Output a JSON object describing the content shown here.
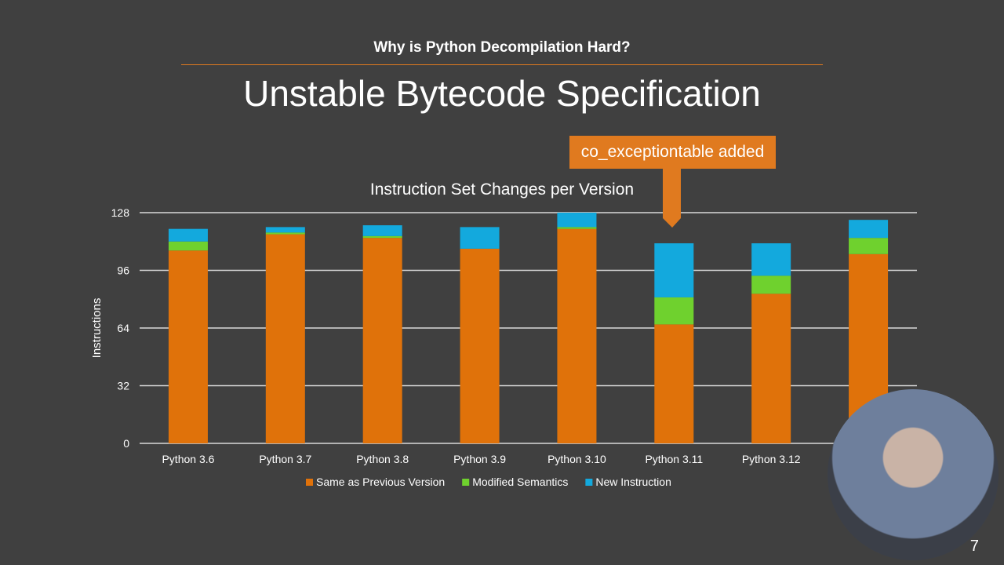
{
  "slide": {
    "kicker": "Why is Python Decompilation Hard?",
    "title": "Unstable Bytecode Specification",
    "callout": "co_exceptiontable added",
    "page_number": "7"
  },
  "chart_data": {
    "type": "bar",
    "stacked": true,
    "title": "Instruction Set Changes per Version",
    "xlabel": "",
    "ylabel": "Instructions",
    "ylim": [
      0,
      128
    ],
    "yticks": [
      0,
      32,
      64,
      96,
      128
    ],
    "grid": true,
    "legend_position": "bottom",
    "categories": [
      "Python 3.6",
      "Python 3.7",
      "Python 3.8",
      "Python 3.9",
      "Python 3.10",
      "Python 3.11",
      "Python 3.12",
      ""
    ],
    "series": [
      {
        "name": "Same as Previous Version",
        "color": "#e0720a",
        "values": [
          107,
          116,
          114,
          108,
          119,
          66,
          83,
          105
        ]
      },
      {
        "name": "Modified Semantics",
        "color": "#6fd12e",
        "values": [
          5,
          1,
          1,
          0,
          1,
          15,
          10,
          9
        ]
      },
      {
        "name": "New Instruction",
        "color": "#13a9dd",
        "values": [
          7,
          3,
          6,
          12,
          8,
          30,
          18,
          10
        ]
      }
    ]
  }
}
